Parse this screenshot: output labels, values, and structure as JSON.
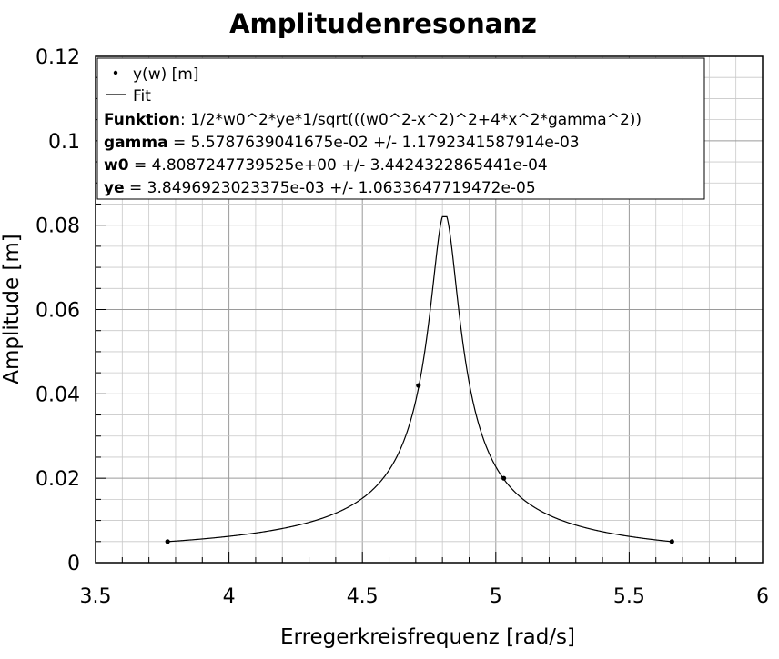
{
  "chart_data": {
    "type": "line",
    "title": "Amplitudenresonanz",
    "xlabel": "Erregerkreisfrequenz [rad/s]",
    "ylabel": "Amplitude [m]",
    "xlim": [
      3.5,
      6
    ],
    "ylim": [
      0,
      0.12
    ],
    "x_ticks": [
      "3.5",
      "4",
      "4.5",
      "5",
      "5.5",
      "6"
    ],
    "y_ticks": [
      "0",
      "0.02",
      "0.04",
      "0.06",
      "0.08",
      "0.1",
      "0.12"
    ],
    "grid": true,
    "legend_placement": "top-left",
    "series": [
      {
        "name": "y(w) [m]",
        "kind": "scatter",
        "marker_color": "#000000",
        "x": [
          3.77,
          4.71,
          5.03,
          5.66
        ],
        "y": [
          0.005,
          0.042,
          0.02,
          0.005
        ]
      },
      {
        "name": "Fit",
        "kind": "line",
        "color": "#000000",
        "model": {
          "gamma": 0.055787639041675,
          "w0": 4.8087247739525,
          "ye": 0.0038496923023375,
          "x_start": 3.77,
          "x_end": 5.66,
          "y_cap": 0.082
        }
      }
    ],
    "legend": {
      "scatter_label": "y(w) [m]",
      "line_label": "Fit",
      "fit_lines": [
        {
          "key": "Funktion",
          "text": ": 1/2*w0^2*ye*1/sqrt(((w0^2-x^2)^2+4*x^2*gamma^2))"
        },
        {
          "key": "gamma",
          "text": " = 5.5787639041675e-02 +/- 1.1792341587914e-03"
        },
        {
          "key": "w0",
          "text": " = 4.8087247739525e+00 +/- 3.4424322865441e-04"
        },
        {
          "key": "ye",
          "text": " = 3.8496923023375e-03 +/- 1.0633647719472e-05"
        }
      ]
    }
  }
}
